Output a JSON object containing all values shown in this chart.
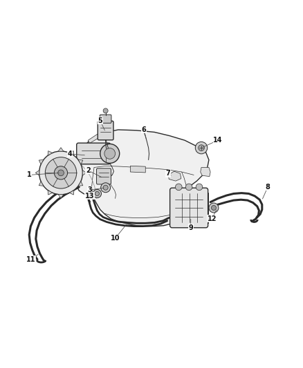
{
  "background_color": "#ffffff",
  "line_color": "#2a2a2a",
  "label_color": "#111111",
  "fig_width": 4.38,
  "fig_height": 5.33,
  "dpi": 100,
  "parts_info": {
    "1": {
      "lbl": [
        0.095,
        0.53
      ]
    },
    "2": {
      "lbl": [
        0.29,
        0.545
      ]
    },
    "3": {
      "lbl": [
        0.295,
        0.48
      ]
    },
    "4": {
      "lbl": [
        0.23,
        0.6
      ]
    },
    "5": {
      "lbl": [
        0.33,
        0.71
      ]
    },
    "6": {
      "lbl": [
        0.475,
        0.68
      ]
    },
    "7": {
      "lbl": [
        0.555,
        0.535
      ]
    },
    "8": {
      "lbl": [
        0.885,
        0.49
      ]
    },
    "9": {
      "lbl": [
        0.63,
        0.355
      ]
    },
    "10": {
      "lbl": [
        0.38,
        0.32
      ]
    },
    "11": {
      "lbl": [
        0.1,
        0.25
      ]
    },
    "12": {
      "lbl": [
        0.7,
        0.385
      ]
    },
    "13": {
      "lbl": [
        0.295,
        0.46
      ]
    },
    "14": {
      "lbl": [
        0.72,
        0.645
      ]
    }
  }
}
